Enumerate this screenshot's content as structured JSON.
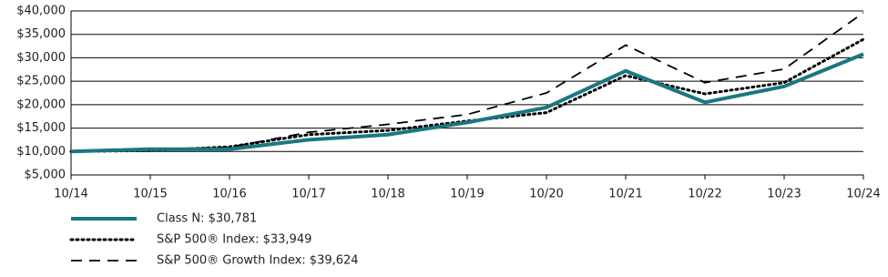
{
  "chart_data": {
    "type": "line",
    "categories": [
      "10/14",
      "10/15",
      "10/16",
      "10/17",
      "10/18",
      "10/19",
      "10/20",
      "10/21",
      "10/22",
      "10/23",
      "10/24"
    ],
    "series": [
      {
        "name": "Class N: $30,781",
        "color": "#1b7683",
        "line_style": "solid",
        "values": [
          10000,
          10500,
          10500,
          12500,
          13600,
          16200,
          19400,
          27200,
          20500,
          23900,
          30781
        ]
      },
      {
        "name": "S&P 500® Index: $33,949",
        "color": "#000000",
        "line_style": "dotted",
        "values": [
          10000,
          10200,
          11000,
          13600,
          14500,
          16500,
          18300,
          26200,
          22300,
          24700,
          33949
        ]
      },
      {
        "name": "S&P 500® Growth Index: $39,624",
        "color": "#000000",
        "line_style": "dashed",
        "values": [
          10000,
          10500,
          10900,
          14100,
          15800,
          17900,
          22500,
          32700,
          24700,
          27600,
          39624
        ]
      }
    ],
    "ylim": [
      5000,
      40000
    ],
    "yticks": [
      {
        "value": 5000,
        "label": "$5,000"
      },
      {
        "value": 10000,
        "label": "$10,000"
      },
      {
        "value": 15000,
        "label": "$15,000"
      },
      {
        "value": 20000,
        "label": "$20,000"
      },
      {
        "value": 25000,
        "label": "$25,000"
      },
      {
        "value": 30000,
        "label": "$30,000"
      },
      {
        "value": 35000,
        "label": "$35,000"
      },
      {
        "value": 40000,
        "label": "$40,000"
      }
    ],
    "grid": true
  }
}
